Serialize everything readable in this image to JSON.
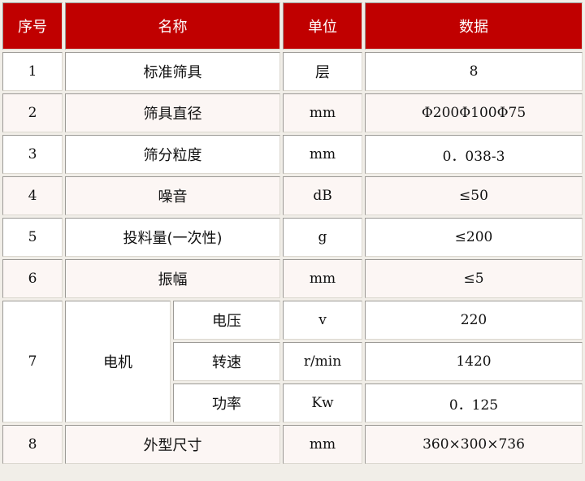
{
  "header": {
    "col1": "序号",
    "col2": "名称",
    "col3": "单位",
    "col4": "数据"
  },
  "rows": [
    {
      "no": "1",
      "name": "标准筛具",
      "unit": "层",
      "value": "8"
    },
    {
      "no": "2",
      "name": "筛具直径",
      "unit": "mm",
      "value": "Φ200Φ100Φ75"
    },
    {
      "no": "3",
      "name": "筛分粒度",
      "unit": "mm",
      "value": "0．038-3"
    },
    {
      "no": "4",
      "name": "噪音",
      "unit": "dB",
      "value": "≤50"
    },
    {
      "no": "5",
      "name": "投料量(一次性)",
      "unit": "g",
      "value": "≤200"
    },
    {
      "no": "6",
      "name": "振幅",
      "unit": "mm",
      "value": "≤5"
    }
  ],
  "motor": {
    "no": "7",
    "name": "电机",
    "sub": [
      {
        "name": "电压",
        "unit": "v",
        "value": "220"
      },
      {
        "name": "转速",
        "unit": "r/min",
        "value": "1420"
      },
      {
        "name": "功率",
        "unit": "Kw",
        "value": "0．125"
      }
    ]
  },
  "last": {
    "no": "8",
    "name": "外型尺寸",
    "unit": "mm",
    "value": "360×300×736"
  }
}
